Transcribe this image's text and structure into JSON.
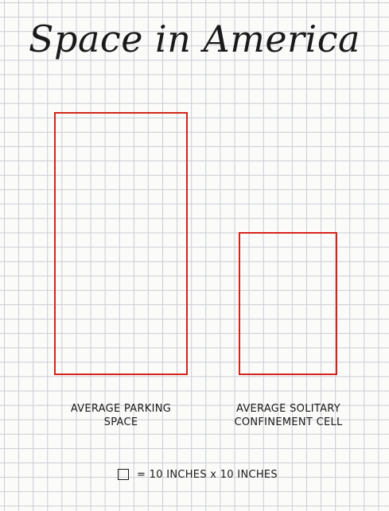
{
  "title": "Space in America",
  "items": [
    {
      "label_line1": "AVERAGE PARKING",
      "label_line2": "SPACE"
    },
    {
      "label_line1": "AVERAGE SOLITARY",
      "label_line2": "CONFINEMENT CELL"
    }
  ],
  "legend": {
    "text": "= 10 INCHES x 10 INCHES"
  },
  "colors": {
    "box_outline": "#d4241c",
    "ink": "#1a1a1a",
    "grid": "#c9ccd2"
  }
}
